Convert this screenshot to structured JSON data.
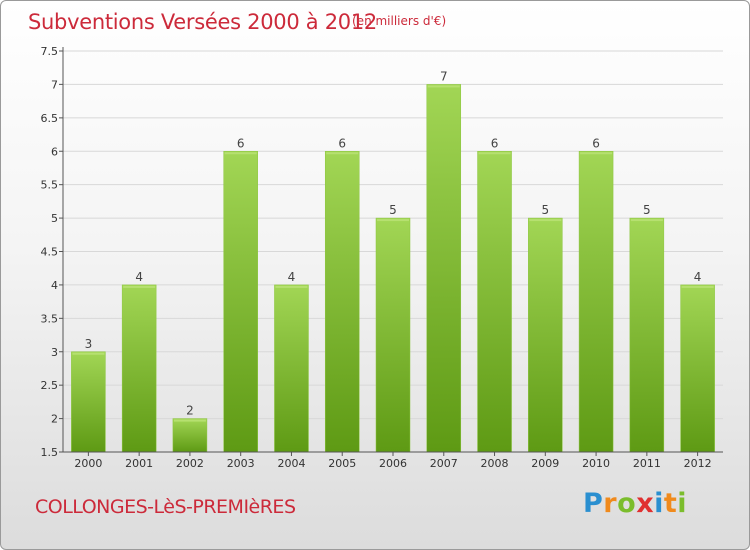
{
  "chart_data": {
    "type": "bar",
    "title": "Subventions Versées 2000 à 2012",
    "subtitle": "(en milliers d'€)",
    "categories": [
      "2000",
      "2001",
      "2002",
      "2003",
      "2004",
      "2005",
      "2006",
      "2007",
      "2008",
      "2009",
      "2010",
      "2011",
      "2012"
    ],
    "values": [
      3,
      4,
      2,
      6,
      4,
      6,
      5,
      7,
      6,
      5,
      6,
      5,
      4
    ],
    "data_labels": [
      "3",
      "4",
      "2",
      "6",
      "4",
      "6",
      "5",
      "7",
      "6",
      "5",
      "6",
      "5",
      "4"
    ],
    "ylim": [
      1.5,
      7.5
    ],
    "yticks": [
      1.5,
      2,
      2.5,
      3,
      3.5,
      4,
      4.5,
      5,
      5.5,
      6,
      6.5,
      7,
      7.5
    ],
    "ytick_labels": [
      "1.5",
      "2",
      "2.5",
      "3",
      "3.5",
      "4",
      "4.5",
      "5",
      "5.5",
      "6",
      "6.5",
      "7",
      "7.5"
    ],
    "grid": true,
    "bar_color": "#7ab829",
    "bar_color_light": "#9ad24a",
    "bar_color_dark": "#5a9612"
  },
  "footer": {
    "commune": "COLLONGES-LèS-PREMIèRES",
    "logo_letters": [
      {
        "ch": "P",
        "color": "#2a8fd0"
      },
      {
        "ch": "r",
        "color": "#f08a1c"
      },
      {
        "ch": "o",
        "color": "#7bbd2c"
      },
      {
        "ch": "x",
        "color": "#e03030"
      },
      {
        "ch": "i",
        "color": "#2a8fd0"
      },
      {
        "ch": "t",
        "color": "#f08a1c"
      },
      {
        "ch": "i",
        "color": "#7bbd2c"
      }
    ]
  },
  "colors": {
    "title": "#cc2a3a",
    "grid": "#d8d8d8",
    "axis": "#555555"
  }
}
